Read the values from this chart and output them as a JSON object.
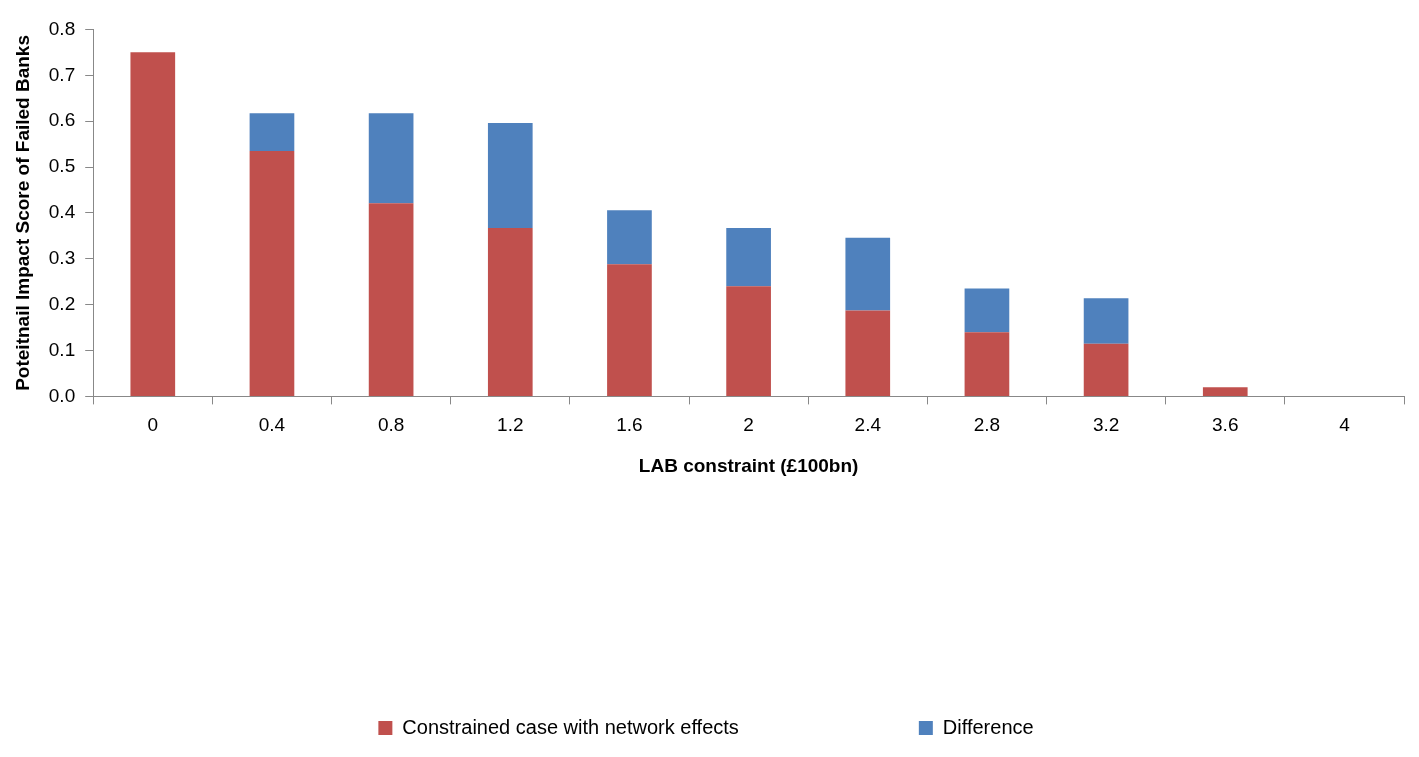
{
  "chart_data": {
    "type": "bar",
    "stacked": true,
    "xlabel": "LAB constraint (£100bn)",
    "ylabel": "Poteitnail Impact Score of Failed Banks",
    "categories": [
      "0",
      "0.4",
      "0.8",
      "1.2",
      "1.6",
      "2",
      "2.4",
      "2.8",
      "3.2",
      "3.6",
      "4"
    ],
    "series": [
      {
        "name": "Constrained case with network effects",
        "color": "#c0504d",
        "values": [
          0.75,
          0.535,
          0.421,
          0.367,
          0.288,
          0.24,
          0.187,
          0.14,
          0.115,
          0.02,
          0
        ]
      },
      {
        "name": "Difference",
        "color": "#4f81bd",
        "values": [
          0,
          0.082,
          0.196,
          0.229,
          0.118,
          0.127,
          0.159,
          0.095,
          0.099,
          0,
          0
        ]
      }
    ],
    "ylim": [
      0,
      0.8
    ],
    "yticks": [
      {
        "value": 0,
        "label": "0.0"
      },
      {
        "value": 0.1,
        "label": "0.1"
      },
      {
        "value": 0.2,
        "label": "0.2"
      },
      {
        "value": 0.3,
        "label": "0.3"
      },
      {
        "value": 0.4,
        "label": "0.4"
      },
      {
        "value": 0.5,
        "label": "0.5"
      },
      {
        "value": 0.6,
        "label": "0.6"
      },
      {
        "value": 0.7,
        "label": "0.7"
      },
      {
        "value": 0.8,
        "label": "0.8"
      }
    ],
    "grid": false,
    "legend": "bottom"
  }
}
